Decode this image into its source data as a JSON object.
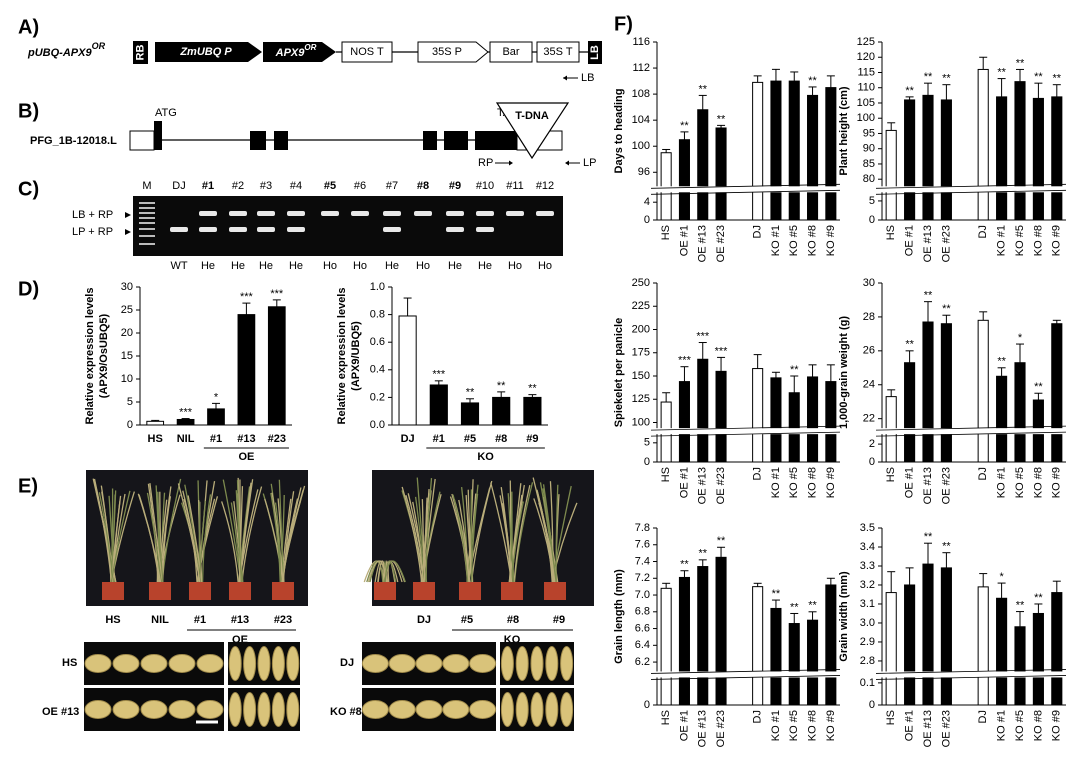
{
  "panel_labels": [
    "A)",
    "B)",
    "C)",
    "D)",
    "E)",
    "F)"
  ],
  "construct": {
    "name": "pUBQ-APX9",
    "name_sup": "OR",
    "elements": [
      "RB",
      "ZmUBQ P",
      "APX9",
      "NOS T",
      "35S P",
      "Bar",
      "35S T",
      "LB"
    ],
    "gene_sup": "OR"
  },
  "gene": {
    "name": "PFG_1B-12018.L",
    "start": "ATG",
    "stop": "TAG",
    "insert": "T-DNA",
    "primers": [
      "LB",
      "RP",
      "LP"
    ]
  },
  "gel": {
    "lanes": [
      "M",
      "DJ",
      "#1",
      "#2",
      "#3",
      "#4",
      "#5",
      "#6",
      "#7",
      "#8",
      "#9",
      "#10",
      "#11",
      "#12"
    ],
    "genotypes": [
      "WT",
      "He",
      "He",
      "He",
      "He",
      "Ho",
      "Ho",
      "He",
      "Ho",
      "He",
      "He",
      "Ho",
      "Ho"
    ],
    "bands": [
      "LB + RP",
      "LP + RP"
    ]
  },
  "photos": {
    "oe_labels": [
      "HS",
      "NIL",
      "#1",
      "#13",
      "#23"
    ],
    "oe_group": "OE",
    "ko_labels": [
      "DJ",
      "#5",
      "#8",
      "#9"
    ],
    "ko_group": "KO",
    "grain_rows": [
      "HS",
      "OE #13",
      "DJ",
      "KO #8"
    ]
  },
  "chart_data": [
    {
      "type": "bar",
      "y_label": [
        "Relative expression levels",
        "(APX9/OsUBQ5)"
      ],
      "categories": [
        "HS",
        "NIL",
        "#1",
        "#13",
        "#23"
      ],
      "group_label": "OE",
      "values": [
        0.8,
        1.2,
        3.5,
        24,
        25.7
      ],
      "errors": [
        0.2,
        0.2,
        1.2,
        2.5,
        1.5
      ],
      "significance": [
        null,
        "***",
        "*",
        "***",
        "***"
      ],
      "colors": [
        "#ffffff",
        "#000000",
        "#000000",
        "#000000",
        "#000000"
      ],
      "ylim": [
        0,
        30
      ],
      "yticks": [
        0,
        5,
        10,
        15,
        20,
        25,
        30
      ]
    },
    {
      "type": "bar",
      "y_label": [
        "Relative expression levels",
        "(APX9/UBQ5)"
      ],
      "categories": [
        "DJ",
        "#1",
        "#5",
        "#8",
        "#9"
      ],
      "group_label": "KO",
      "values": [
        0.79,
        0.29,
        0.16,
        0.2,
        0.2
      ],
      "errors": [
        0.13,
        0.03,
        0.03,
        0.04,
        0.02
      ],
      "significance": [
        null,
        "***",
        "**",
        "**",
        "**"
      ],
      "colors": [
        "#ffffff",
        "#000000",
        "#000000",
        "#000000",
        "#000000"
      ],
      "ylim": [
        0,
        1
      ],
      "yticks": [
        {
          "value": 0,
          "label": "0.0"
        },
        0.2,
        0.4,
        0.6,
        0.8,
        {
          "value": 1,
          "label": "1.0"
        }
      ]
    },
    {
      "type": "bar",
      "y_label": "Days to heading",
      "categories": [
        "HS",
        "OE #1",
        "OE #13",
        "OE #23",
        "DJ",
        "KO #1",
        "KO #5",
        "KO #8",
        "KO #9"
      ],
      "values": [
        99,
        101,
        105.6,
        102.8,
        109.8,
        110,
        110,
        107.8,
        109
      ],
      "errors": [
        0.5,
        1.2,
        2.2,
        0.4,
        1,
        1.8,
        1.4,
        1.3,
        1.8
      ],
      "significance": [
        null,
        "**",
        "**",
        "**",
        null,
        null,
        null,
        "**",
        null
      ],
      "colors": [
        "#ffffff",
        "#000000",
        "#000000",
        "#000000",
        "#ffffff",
        "#000000",
        "#000000",
        "#000000",
        "#000000"
      ],
      "ylim": [
        0,
        116
      ],
      "ybreak": [
        6,
        94
      ],
      "yticks": [
        0,
        4,
        96,
        100,
        104,
        108,
        112,
        116
      ]
    },
    {
      "type": "bar",
      "y_label": "Plant height (cm)",
      "categories": [
        "HS",
        "OE #1",
        "OE #13",
        "OE #23",
        "DJ",
        "KO #1",
        "KO #5",
        "KO #8",
        "KO #9"
      ],
      "values": [
        96,
        106,
        107.5,
        106,
        116,
        107,
        112,
        106.5,
        107
      ],
      "errors": [
        2.5,
        1,
        4,
        5,
        4,
        6,
        4,
        5,
        4
      ],
      "significance": [
        null,
        "**",
        "**",
        "**",
        null,
        "**",
        "**",
        "**",
        "**"
      ],
      "colors": [
        "#ffffff",
        "#000000",
        "#000000",
        "#000000",
        "#ffffff",
        "#000000",
        "#000000",
        "#000000",
        "#000000"
      ],
      "ylim": [
        0,
        125
      ],
      "ybreak": [
        7,
        78
      ],
      "yticks": [
        0,
        5,
        80,
        85,
        90,
        95,
        100,
        105,
        110,
        115,
        120,
        125
      ]
    },
    {
      "type": "bar",
      "y_label": "Spiekelet per panicle",
      "categories": [
        "HS",
        "OE #1",
        "OE #13",
        "OE #23",
        "DJ",
        "KO #1",
        "KO #5",
        "KO #8",
        "KO #9"
      ],
      "values": [
        122,
        144,
        168,
        155,
        158,
        148,
        132,
        149,
        144
      ],
      "errors": [
        10,
        16,
        18,
        15,
        15,
        6,
        18,
        13,
        18
      ],
      "significance": [
        null,
        "***",
        "***",
        "***",
        null,
        null,
        "**",
        null,
        null
      ],
      "colors": [
        "#ffffff",
        "#000000",
        "#000000",
        "#000000",
        "#ffffff",
        "#000000",
        "#000000",
        "#000000",
        "#000000"
      ],
      "ylim": [
        0,
        250
      ],
      "ybreak": [
        7,
        95
      ],
      "yticks": [
        0,
        5,
        100,
        125,
        150,
        175,
        200,
        225,
        250
      ]
    },
    {
      "type": "bar",
      "y_label": "1,000-grain weight (g)",
      "categories": [
        "HS",
        "OE #1",
        "OE #13",
        "OE #23",
        "DJ",
        "KO #1",
        "KO #5",
        "KO #8",
        "KO #9"
      ],
      "values": [
        23.3,
        25.3,
        27.7,
        27.6,
        27.8,
        24.5,
        25.3,
        23.1,
        27.6
      ],
      "errors": [
        0.4,
        0.7,
        1.2,
        0.5,
        0.5,
        0.5,
        1.1,
        0.4,
        0.2
      ],
      "significance": [
        null,
        "**",
        "**",
        "**",
        null,
        "**",
        "*",
        "**",
        null
      ],
      "colors": [
        "#ffffff",
        "#000000",
        "#000000",
        "#000000",
        "#ffffff",
        "#000000",
        "#000000",
        "#000000",
        "#000000"
      ],
      "ylim": [
        0,
        30
      ],
      "ybreak": [
        3,
        21.5
      ],
      "yticks": [
        0,
        2,
        22,
        24,
        26,
        28,
        30
      ]
    },
    {
      "type": "bar",
      "y_label": "Grain length (mm)",
      "categories": [
        "HS",
        "OE #1",
        "OE #13",
        "OE #23",
        "DJ",
        "KO #1",
        "KO #5",
        "KO #8",
        "KO #9"
      ],
      "values": [
        7.08,
        7.21,
        7.34,
        7.45,
        7.1,
        6.84,
        6.66,
        6.7,
        7.12
      ],
      "errors": [
        0.06,
        0.08,
        0.08,
        0.12,
        0.04,
        0.1,
        0.12,
        0.1,
        0.08
      ],
      "significance": [
        null,
        "**",
        "**",
        "**",
        null,
        "**",
        "**",
        "**",
        null
      ],
      "colors": [
        "#ffffff",
        "#000000",
        "#000000",
        "#000000",
        "#ffffff",
        "#000000",
        "#000000",
        "#000000",
        "#000000"
      ],
      "ylim": [
        0,
        7.8
      ],
      "ybreak": [
        0.1,
        6.1
      ],
      "yticks": [
        0,
        6.2,
        6.4,
        6.6,
        6.8,
        {
          "value": 7,
          "label": "7.0"
        },
        7.2,
        7.4,
        7.6,
        7.8
      ]
    },
    {
      "type": "bar",
      "y_label": "Grain width (mm)",
      "categories": [
        "HS",
        "OE #1",
        "OE #13",
        "OE #23",
        "DJ",
        "KO #1",
        "KO #5",
        "KO #8",
        "KO #9"
      ],
      "values": [
        3.16,
        3.2,
        3.31,
        3.29,
        3.19,
        3.13,
        2.98,
        3.05,
        3.16
      ],
      "errors": [
        0.11,
        0.09,
        0.11,
        0.08,
        0.07,
        0.08,
        0.08,
        0.05,
        0.06
      ],
      "significance": [
        null,
        null,
        "**",
        "**",
        null,
        "*",
        "**",
        "**",
        null
      ],
      "colors": [
        "#ffffff",
        "#000000",
        "#000000",
        "#000000",
        "#ffffff",
        "#000000",
        "#000000",
        "#000000",
        "#000000"
      ],
      "ylim": [
        0,
        3.5
      ],
      "ybreak": [
        0.12,
        2.75
      ],
      "yticks": [
        0,
        0.1,
        2.8,
        2.9,
        {
          "value": 3,
          "label": "3.0"
        },
        3.1,
        3.2,
        3.3,
        3.4,
        3.5
      ]
    }
  ]
}
